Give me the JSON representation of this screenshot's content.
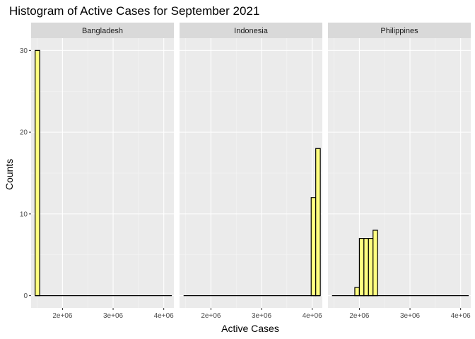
{
  "chart_data": {
    "type": "bar",
    "subtype": "histogram",
    "title": "Histogram of Active Cases for September 2021",
    "xlabel": "Active Cases",
    "ylabel": "Counts",
    "xlim": [
      1380000,
      4200000
    ],
    "ylim": [
      -1.5,
      31.5
    ],
    "x_ticks": [
      2000000,
      3000000,
      4000000
    ],
    "x_tick_labels": [
      "2e+06",
      "3e+06",
      "4e+06"
    ],
    "y_ticks": [
      0,
      10,
      20,
      30
    ],
    "y_tick_labels": [
      "0",
      "10",
      "20",
      "30"
    ],
    "bin_start": 1460000,
    "bin_width": 90000,
    "bar_fill": "#ffff80",
    "bar_stroke": "#000000",
    "panel_background": "#ebebeb",
    "strip_background": "#d9d9d9",
    "grid": true,
    "facets": [
      {
        "name": "Bangladesh",
        "counts": [
          30,
          0,
          0,
          0,
          0,
          0,
          0,
          0,
          0,
          0,
          0,
          0,
          0,
          0,
          0,
          0,
          0,
          0,
          0,
          0,
          0,
          0,
          0,
          0,
          0,
          0,
          0,
          0,
          0,
          0
        ]
      },
      {
        "name": "Indonesia",
        "counts": [
          0,
          0,
          0,
          0,
          0,
          0,
          0,
          0,
          0,
          0,
          0,
          0,
          0,
          0,
          0,
          0,
          0,
          0,
          0,
          0,
          0,
          0,
          0,
          0,
          0,
          0,
          0,
          0,
          12,
          18
        ]
      },
      {
        "name": "Philippines",
        "counts": [
          0,
          0,
          0,
          0,
          0,
          1,
          7,
          7,
          7,
          8,
          0,
          0,
          0,
          0,
          0,
          0,
          0,
          0,
          0,
          0,
          0,
          0,
          0,
          0,
          0,
          0,
          0,
          0,
          0,
          0
        ]
      }
    ]
  }
}
